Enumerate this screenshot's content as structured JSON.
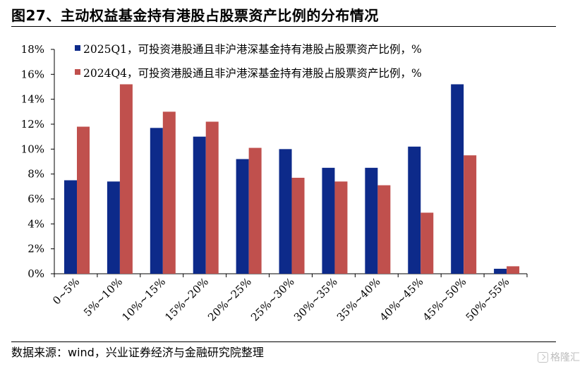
{
  "figure": {
    "title": "图27、主动权益基金持有港股占股票资产比例的分布情况",
    "source": "数据来源：wind，兴业证券经济与金融研究院整理",
    "watermark": "格隆汇"
  },
  "colors": {
    "series_1": "#0D2A8A",
    "series_2": "#C0504D",
    "axis": "#000000"
  },
  "chart_data": {
    "type": "bar",
    "categories": [
      "0~5%",
      "5%~10%",
      "10%~15%",
      "15%~20%",
      "20%~25%",
      "25%~30%",
      "30%~35%",
      "35%~40%",
      "40%~45%",
      "45%~50%",
      "50%~55%"
    ],
    "series": [
      {
        "name": "2025Q1，可投资港股通且非沪港深基金持有港股占股票资产比例，%",
        "values": [
          7.5,
          7.4,
          11.7,
          11.0,
          9.2,
          10.0,
          8.5,
          8.5,
          10.2,
          15.2,
          0.4
        ]
      },
      {
        "name": "2024Q4，可投资港股通且非沪港深基金持有港股占股票资产比例，%",
        "values": [
          11.8,
          15.2,
          13.0,
          12.2,
          10.1,
          7.7,
          7.4,
          7.1,
          4.9,
          9.5,
          0.6
        ]
      }
    ],
    "y_ticks": [
      "0%",
      "2%",
      "4%",
      "6%",
      "8%",
      "10%",
      "12%",
      "14%",
      "16%",
      "18%"
    ],
    "ylim": [
      0,
      18
    ],
    "grid": false,
    "legend": "top-center"
  }
}
